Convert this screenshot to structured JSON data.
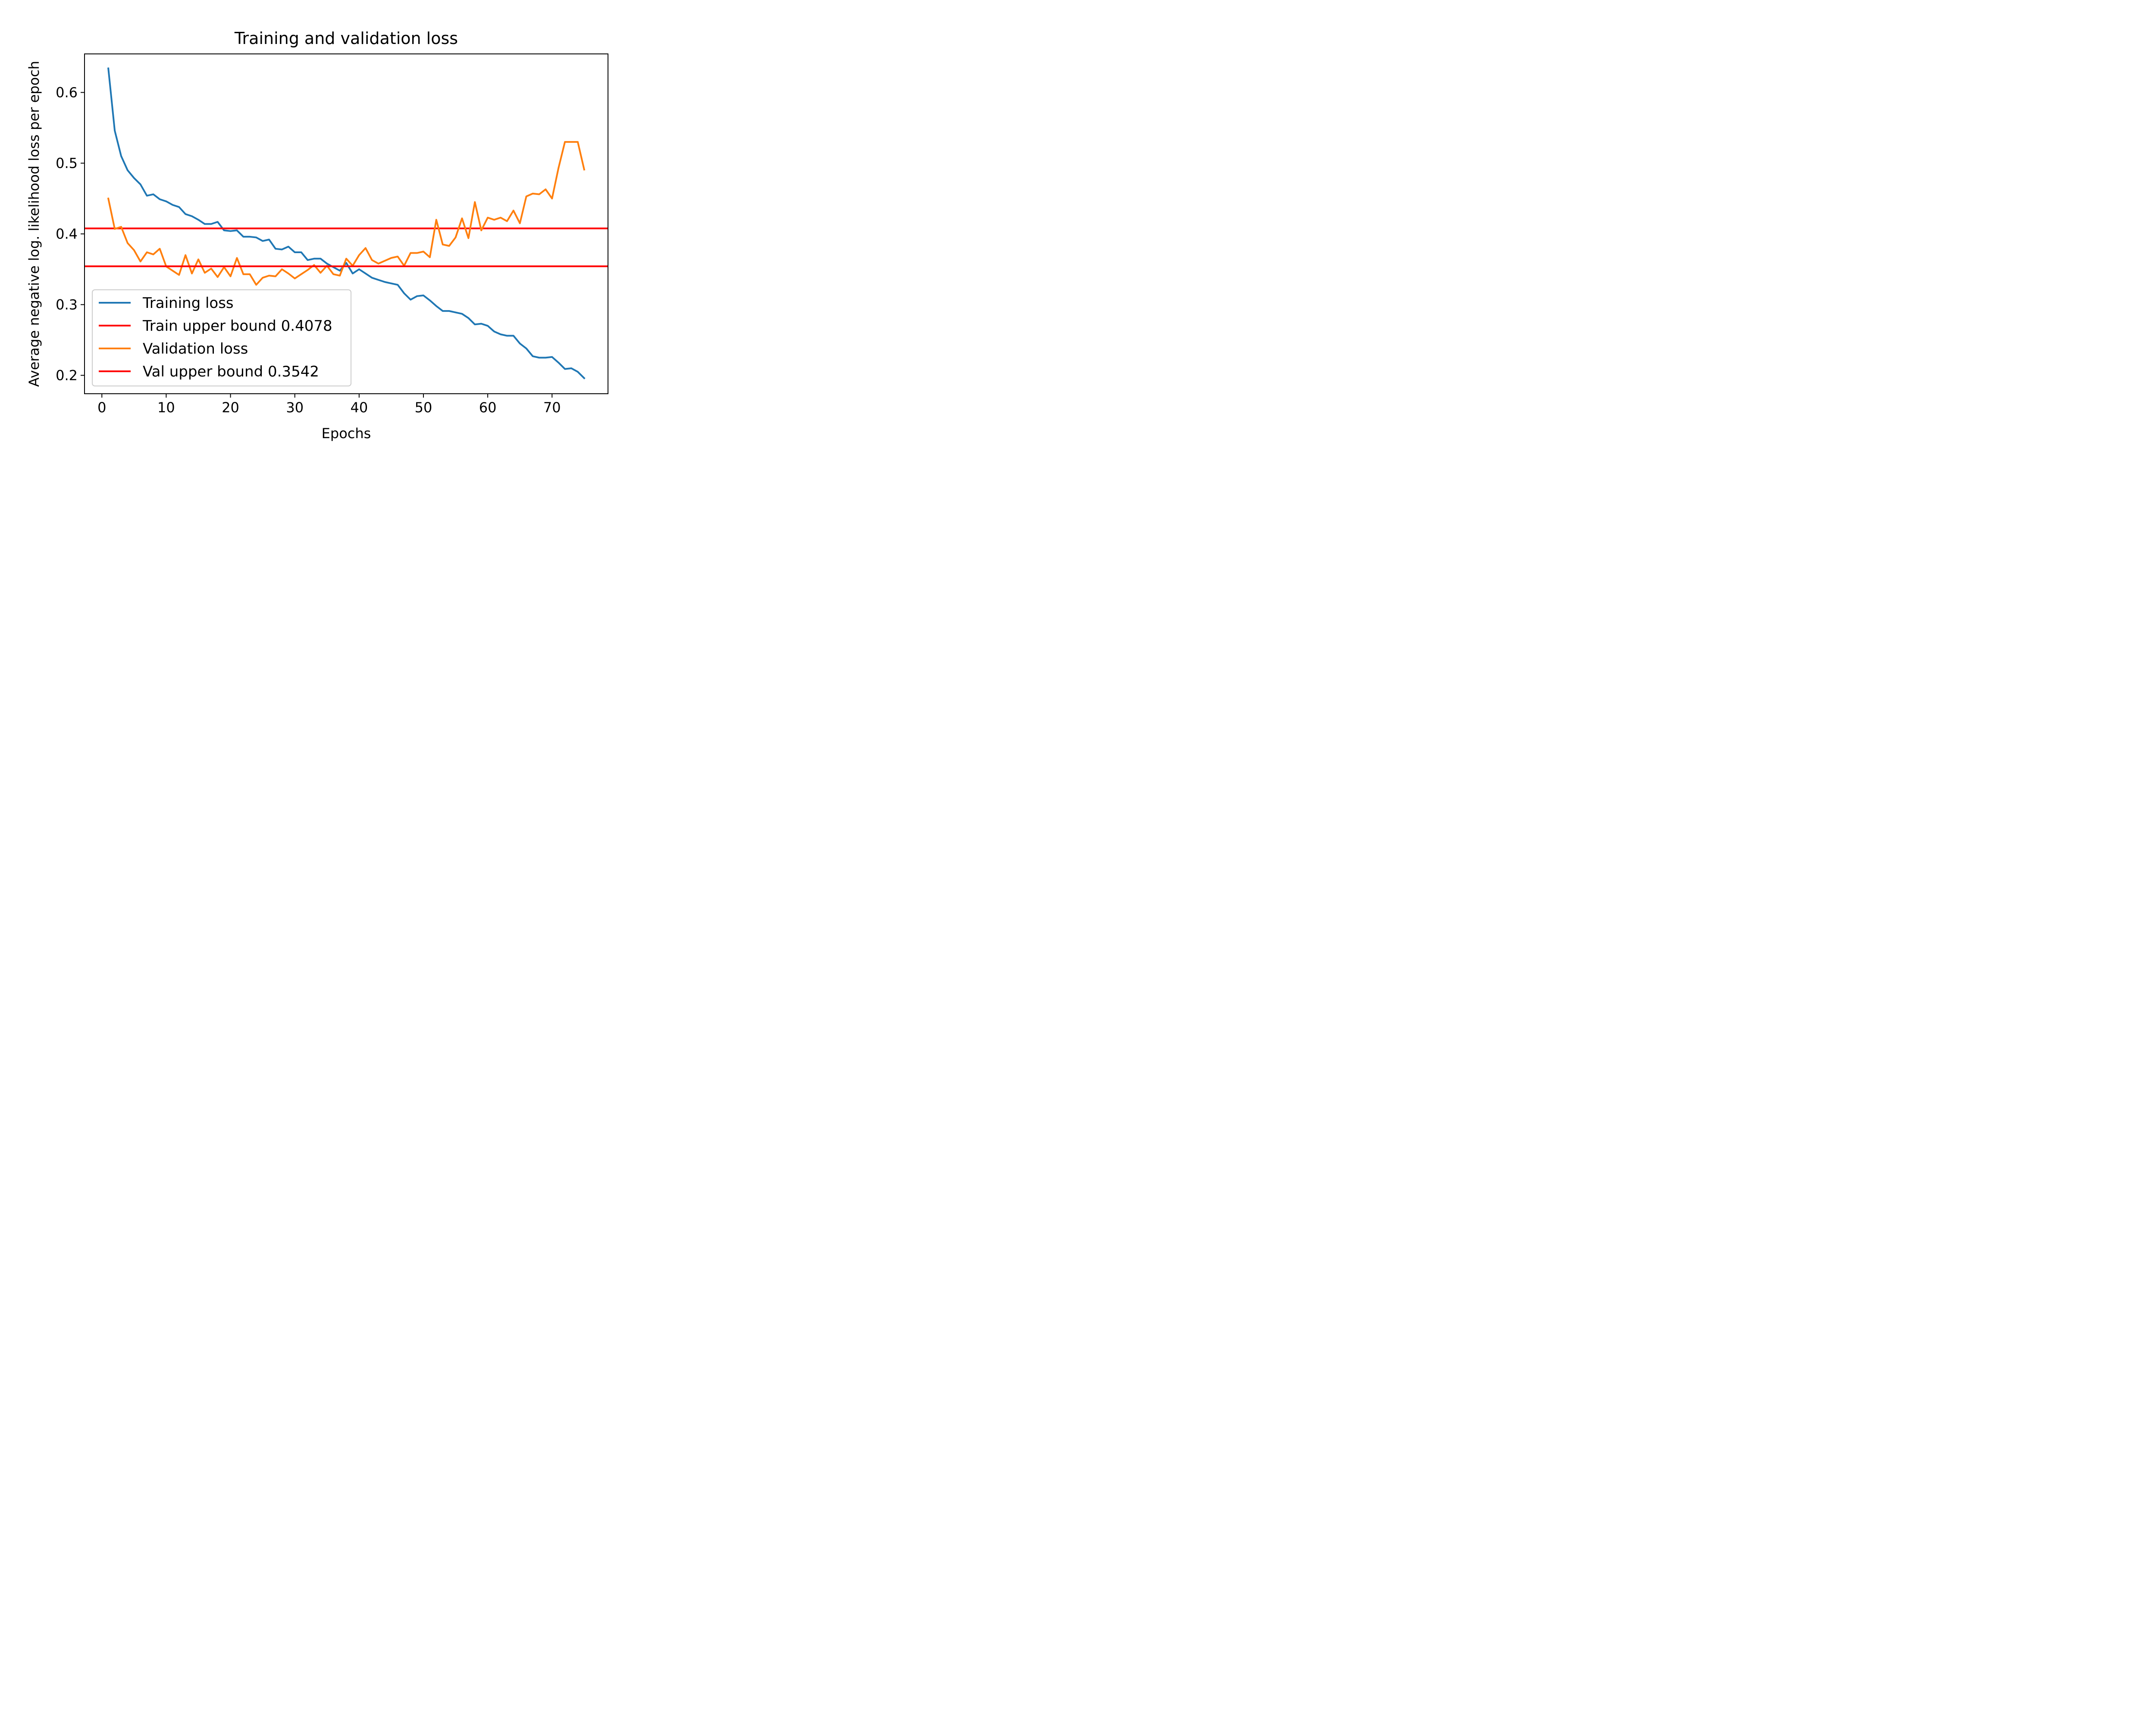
{
  "chart_data": {
    "type": "line",
    "title": "Training and validation loss",
    "xlabel": "Epochs",
    "ylabel": "Average negative log. likelihood loss per epoch",
    "xlim": [
      -2.7,
      78.7
    ],
    "ylim": [
      0.174,
      0.6545
    ],
    "xticks": [
      0,
      10,
      20,
      30,
      40,
      50,
      60,
      70
    ],
    "yticks": [
      0.2,
      0.3,
      0.4,
      0.5,
      0.6
    ],
    "yticklabels": [
      "0.2",
      "0.3",
      "0.4",
      "0.5",
      "0.6"
    ],
    "legend_position": "lower-left",
    "grid": false,
    "series": [
      {
        "name": "Training loss",
        "color": "#1f77b4",
        "x": [
          1,
          2,
          3,
          4,
          5,
          6,
          7,
          8,
          9,
          10,
          11,
          12,
          13,
          14,
          15,
          16,
          17,
          18,
          19,
          20,
          21,
          22,
          23,
          24,
          25,
          26,
          27,
          28,
          29,
          30,
          31,
          32,
          33,
          34,
          35,
          36,
          37,
          38,
          39,
          40,
          41,
          42,
          43,
          44,
          45,
          46,
          47,
          48,
          49,
          50,
          51,
          52,
          53,
          54,
          55,
          56,
          57,
          58,
          59,
          60,
          61,
          62,
          63,
          64,
          65,
          66,
          67,
          68,
          69,
          70,
          71,
          72,
          73,
          74,
          75
        ],
        "y": [
          0.634,
          0.546,
          0.51,
          0.49,
          0.479,
          0.47,
          0.454,
          0.456,
          0.449,
          0.446,
          0.441,
          0.438,
          0.428,
          0.425,
          0.42,
          0.414,
          0.414,
          0.417,
          0.405,
          0.404,
          0.405,
          0.396,
          0.396,
          0.395,
          0.39,
          0.392,
          0.379,
          0.378,
          0.382,
          0.374,
          0.374,
          0.363,
          0.365,
          0.365,
          0.358,
          0.353,
          0.348,
          0.359,
          0.344,
          0.35,
          0.344,
          0.338,
          0.335,
          0.332,
          0.33,
          0.328,
          0.316,
          0.307,
          0.312,
          0.313,
          0.306,
          0.298,
          0.291,
          0.291,
          0.289,
          0.287,
          0.281,
          0.272,
          0.273,
          0.27,
          0.262,
          0.258,
          0.256,
          0.256,
          0.245,
          0.238,
          0.227,
          0.225,
          0.225,
          0.226,
          0.218,
          0.209,
          0.21,
          0.205,
          0.196
        ]
      },
      {
        "name": "Train upper bound 0.4078",
        "color": "#ff0000",
        "type": "hline",
        "y": 0.4078
      },
      {
        "name": "Validation loss",
        "color": "#ff7f0e",
        "x": [
          1,
          2,
          3,
          4,
          5,
          6,
          7,
          8,
          9,
          10,
          11,
          12,
          13,
          14,
          15,
          16,
          17,
          18,
          19,
          20,
          21,
          22,
          23,
          24,
          25,
          26,
          27,
          28,
          29,
          30,
          31,
          32,
          33,
          34,
          35,
          36,
          37,
          38,
          39,
          40,
          41,
          42,
          43,
          44,
          45,
          46,
          47,
          48,
          49,
          50,
          51,
          52,
          53,
          54,
          55,
          56,
          57,
          58,
          59,
          60,
          61,
          62,
          63,
          64,
          65,
          66,
          67,
          68,
          69,
          70,
          71,
          72,
          73,
          74,
          75
        ],
        "y": [
          0.45,
          0.407,
          0.41,
          0.387,
          0.377,
          0.361,
          0.374,
          0.371,
          0.379,
          0.354,
          0.348,
          0.342,
          0.37,
          0.344,
          0.364,
          0.345,
          0.351,
          0.339,
          0.353,
          0.34,
          0.366,
          0.343,
          0.343,
          0.328,
          0.338,
          0.341,
          0.34,
          0.35,
          0.344,
          0.337,
          0.343,
          0.349,
          0.356,
          0.345,
          0.355,
          0.343,
          0.341,
          0.365,
          0.355,
          0.37,
          0.38,
          0.363,
          0.358,
          0.362,
          0.366,
          0.368,
          0.355,
          0.373,
          0.373,
          0.375,
          0.367,
          0.42,
          0.385,
          0.383,
          0.395,
          0.422,
          0.394,
          0.445,
          0.405,
          0.423,
          0.42,
          0.423,
          0.418,
          0.433,
          0.415,
          0.453,
          0.457,
          0.456,
          0.463,
          0.45,
          0.493,
          0.53,
          0.53,
          0.53,
          0.491
        ]
      },
      {
        "name": "Val upper bound 0.3542",
        "color": "#ff0000",
        "type": "hline",
        "y": 0.3542
      }
    ]
  }
}
